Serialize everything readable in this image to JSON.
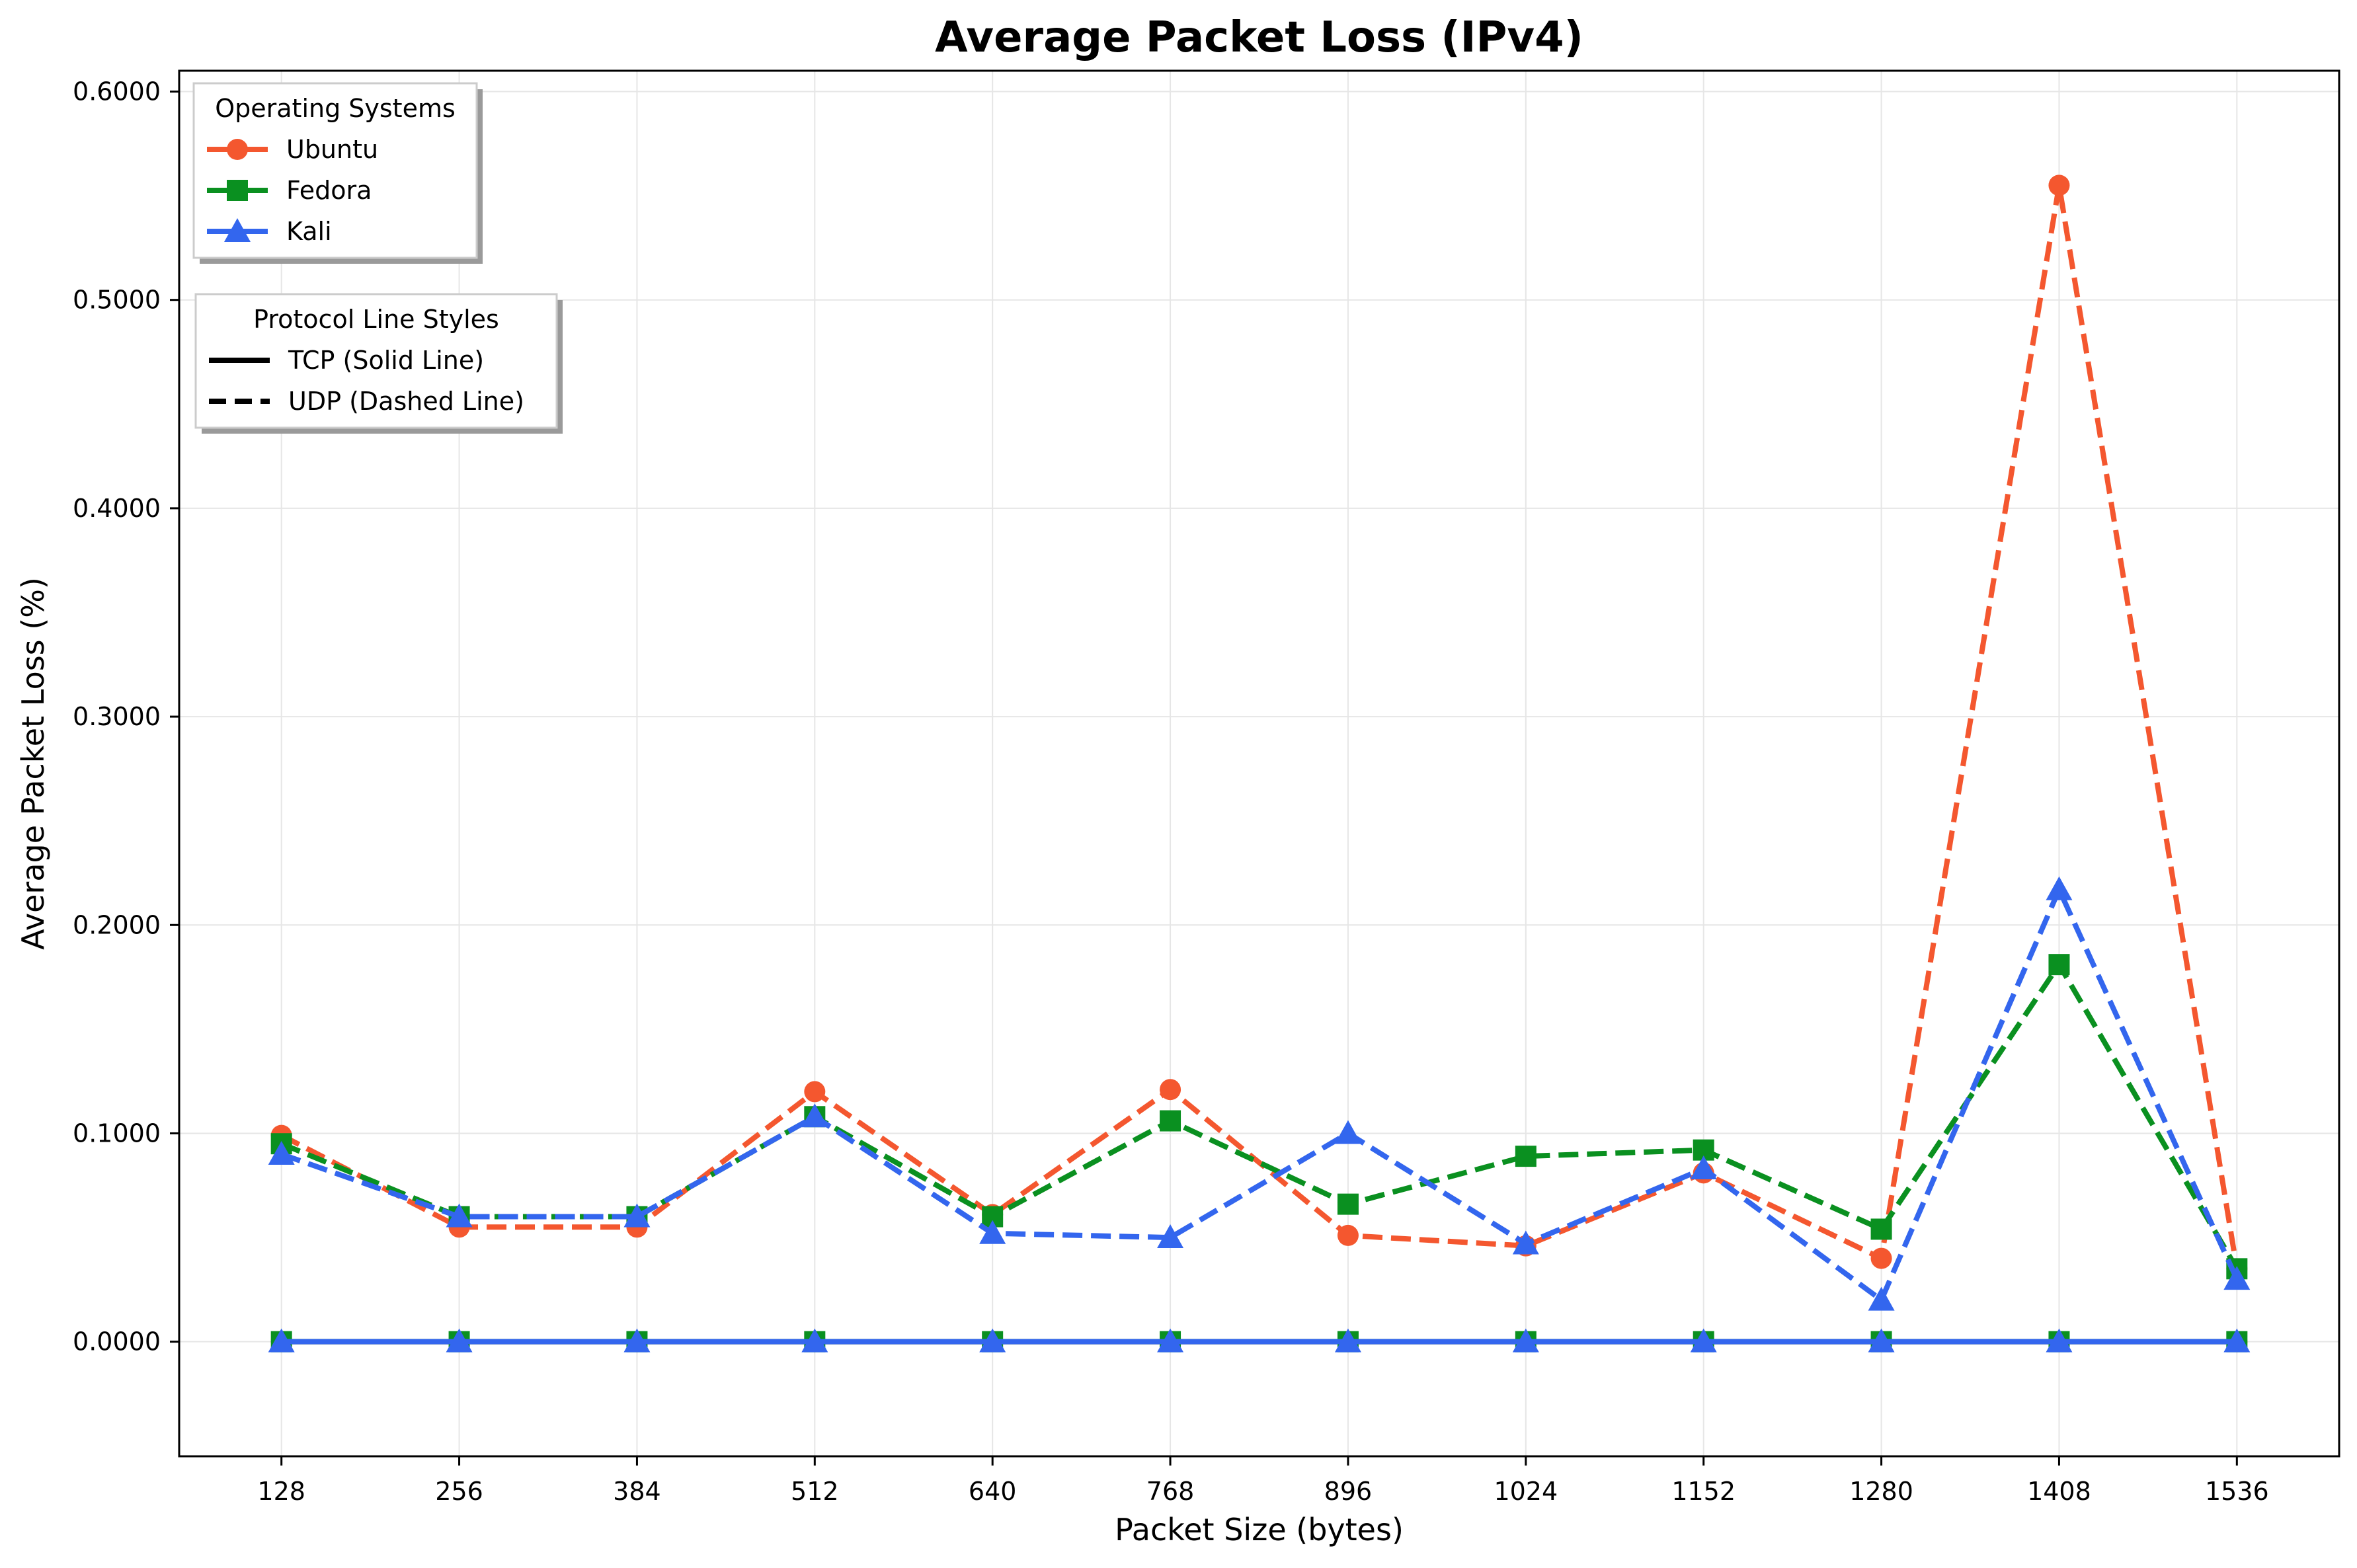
{
  "chart_data": {
    "type": "line",
    "title": "Average Packet Loss (IPv4)",
    "xlabel": "Packet Size (bytes)",
    "ylabel": "Average Packet Loss (%)",
    "x": [
      128,
      256,
      384,
      512,
      640,
      768,
      896,
      1024,
      1152,
      1280,
      1408,
      1536
    ],
    "x_tick_labels": [
      "128",
      "256",
      "384",
      "512",
      "640",
      "768",
      "896",
      "1024",
      "1152",
      "1280",
      "1408",
      "1536"
    ],
    "ylim": [
      -0.055,
      0.61
    ],
    "y_ticks": [
      0.0,
      0.1,
      0.2,
      0.3,
      0.4,
      0.5,
      0.6
    ],
    "y_tick_labels": [
      "0.0000",
      "0.1000",
      "0.2000",
      "0.3000",
      "0.4000",
      "0.5000",
      "0.6000"
    ],
    "grid": true,
    "series": [
      {
        "name": "Ubuntu",
        "protocol": "UDP",
        "color": "#f4572f",
        "marker": "circle",
        "dashed": true,
        "values": [
          0.099,
          0.055,
          0.055,
          0.12,
          0.061,
          0.121,
          0.051,
          0.046,
          0.081,
          0.04,
          0.555,
          0.035
        ]
      },
      {
        "name": "Fedora",
        "protocol": "UDP",
        "color": "#0a9020",
        "marker": "square",
        "dashed": true,
        "values": [
          0.095,
          0.06,
          0.06,
          0.108,
          0.06,
          0.106,
          0.066,
          0.089,
          0.092,
          0.054,
          0.181,
          0.035
        ]
      },
      {
        "name": "Kali",
        "protocol": "UDP",
        "color": "#3366ee",
        "marker": "triangle",
        "dashed": true,
        "values": [
          0.09,
          0.06,
          0.06,
          0.108,
          0.052,
          0.05,
          0.1,
          0.047,
          0.083,
          0.02,
          0.217,
          0.03
        ]
      },
      {
        "name": "Ubuntu",
        "protocol": "TCP",
        "color": "#f4572f",
        "marker": "circle",
        "dashed": false,
        "values": [
          0,
          0,
          0,
          0,
          0,
          0,
          0,
          0,
          0,
          0,
          0,
          0
        ]
      },
      {
        "name": "Fedora",
        "protocol": "TCP",
        "color": "#0a9020",
        "marker": "square",
        "dashed": false,
        "values": [
          0,
          0,
          0,
          0,
          0,
          0,
          0,
          0,
          0,
          0,
          0,
          0
        ]
      },
      {
        "name": "Kali",
        "protocol": "TCP",
        "color": "#3366ee",
        "marker": "triangle",
        "dashed": false,
        "values": [
          0,
          0,
          0,
          0,
          0,
          0,
          0,
          0,
          0,
          0,
          0,
          0
        ]
      }
    ],
    "legends": [
      {
        "title": "Operating Systems",
        "placement": "upper-left",
        "entries": [
          {
            "label": "Ubuntu",
            "color": "#f4572f",
            "marker": "circle"
          },
          {
            "label": "Fedora",
            "color": "#0a9020",
            "marker": "square"
          },
          {
            "label": "Kali",
            "color": "#3366ee",
            "marker": "triangle"
          }
        ]
      },
      {
        "title": "Protocol Line Styles",
        "placement": "upper-left",
        "entries": [
          {
            "label": "TCP (Solid Line)",
            "color": "#000000",
            "dashed": false
          },
          {
            "label": "UDP (Dashed Line)",
            "color": "#000000",
            "dashed": true
          }
        ]
      }
    ]
  }
}
